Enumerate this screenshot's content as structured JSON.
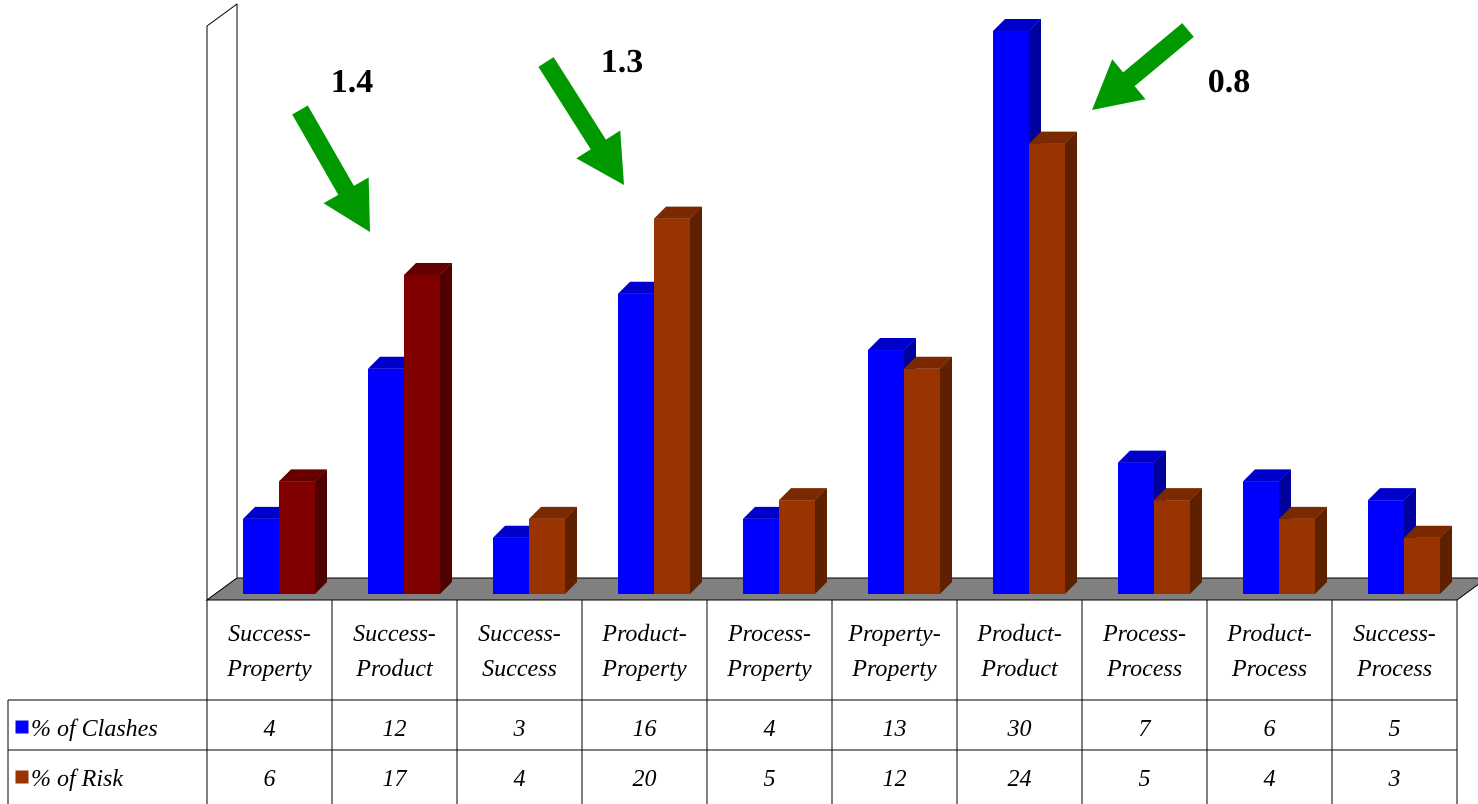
{
  "chart_data": {
    "type": "bar",
    "style": "3d-clustered-column-with-data-table",
    "categories": [
      [
        "Success-",
        "Property"
      ],
      [
        "Success-",
        "Product"
      ],
      [
        "Success-",
        "Success"
      ],
      [
        "Product-",
        "Property"
      ],
      [
        "Process-",
        "Property"
      ],
      [
        "Property-",
        "Property"
      ],
      [
        "Product-",
        "Product"
      ],
      [
        "Process-",
        "Process"
      ],
      [
        "Product-",
        "Process"
      ],
      [
        "Success-",
        "Process"
      ]
    ],
    "series": [
      {
        "name": "% of Clashes",
        "color": "#0000ff",
        "values": [
          4,
          12,
          3,
          16,
          4,
          13,
          30,
          7,
          6,
          5
        ]
      },
      {
        "name": "% of Risk",
        "color": "#993300",
        "values": [
          6,
          17,
          4,
          20,
          5,
          12,
          24,
          5,
          4,
          3
        ]
      }
    ],
    "highlight_color": "#800000",
    "highlighted_bars": [
      0,
      1
    ],
    "ylim": [
      0,
      30
    ],
    "grid": false,
    "floor_color": "#808080",
    "legend": "table-left",
    "title": "",
    "xlabel": "",
    "ylabel": "",
    "annotations": [
      {
        "text": "1.4",
        "category_index": 1
      },
      {
        "text": "1.3",
        "category_index": 3
      },
      {
        "text": "0.8",
        "category_index": 6
      }
    ],
    "annotation_arrow_color": "#009900"
  }
}
